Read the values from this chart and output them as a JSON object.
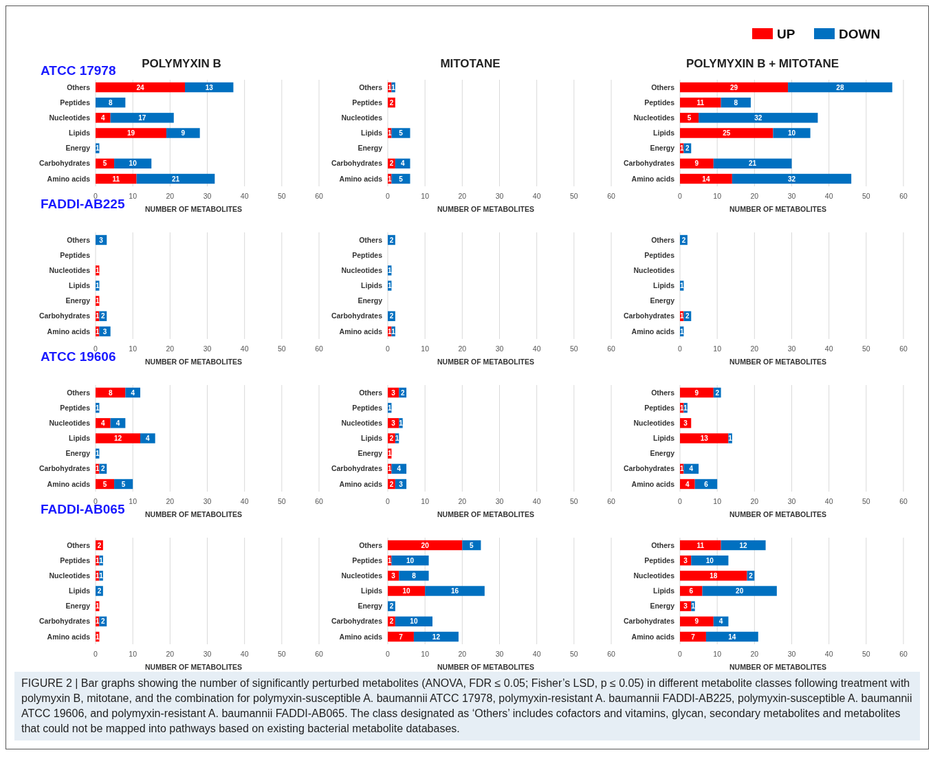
{
  "chart_data": [
    {
      "type": "bar",
      "orientation": "horizontal",
      "stacked": true,
      "title": "POLYMYXIN B",
      "subtitle": "ATCC 17978",
      "xlabel": "NUMBER OF METABOLITES",
      "categories": [
        "Others",
        "Peptides",
        "Nucleotides",
        "Lipids",
        "Energy",
        "Carbohydrates",
        "Amino acids"
      ],
      "xlim": [
        0,
        60
      ],
      "xticks": [
        0,
        10,
        20,
        30,
        40,
        50,
        60
      ],
      "grid": "x",
      "data_labels": true,
      "annotations": [
        "FIGURE 2 | Bar graphs showing the number of significantly perturbed metabolites (ANOVA, FDR ≤ 0.05; Fisher’s LSD, p ≤ 0.05) in different metabolite classes following treatment with polymyxin B, mitotane, and the combination for polymyxin-susceptible A. baumannii ATCC 17978, polymyxin-resistant A. baumannii FADDI-AB225, polymyxin-susceptible A. baumannii ATCC 19606, and polymyxin-resistant A. baumannii FADDI-AB065. The class designated as ‘Others’ includes cofactors and vitamins, glycan, secondary metabolites and metabolites that could not be mapped into pathways based on existing bacterial metabolite databases."
      ],
      "series": [
        {
          "color": "#ff0000",
          "values": [
            24,
            null,
            4,
            19,
            null,
            5,
            11
          ]
        },
        {
          "color": "#0070c0",
          "values": [
            13,
            8,
            17,
            9,
            1,
            10,
            21
          ]
        }
      ]
    },
    {
      "type": "bar",
      "orientation": "horizontal",
      "stacked": true,
      "title": "MITOTANE",
      "xlabel": "NUMBER OF METABOLITES",
      "categories": [
        "Others",
        "Peptides",
        "Nucleotides",
        "Lipids",
        "Energy",
        "Carbohydrates",
        "Amino acids"
      ],
      "xlim": [
        0,
        60
      ],
      "xticks": [
        0,
        10,
        20,
        30,
        40,
        50,
        60
      ],
      "grid": "x",
      "data_labels": true,
      "series": [
        {
          "color": "#ff0000",
          "values": [
            1,
            2,
            null,
            1,
            null,
            2,
            1
          ]
        },
        {
          "color": "#0070c0",
          "values": [
            1,
            null,
            null,
            5,
            null,
            4,
            5
          ]
        }
      ]
    },
    {
      "type": "bar",
      "orientation": "horizontal",
      "stacked": true,
      "title": "POLYMYXIN B + MITOTANE",
      "xlabel": "NUMBER OF METABOLITES",
      "categories": [
        "Others",
        "Peptides",
        "Nucleotides",
        "Lipids",
        "Energy",
        "Carbohydrates",
        "Amino acids"
      ],
      "xlim": [
        0,
        60
      ],
      "xticks": [
        0,
        10,
        20,
        30,
        40,
        50,
        60
      ],
      "grid": "x",
      "data_labels": true,
      "legend": "top right",
      "series": [
        {
          "name": "UP",
          "color": "#ff0000",
          "values": [
            29,
            11,
            5,
            25,
            1,
            9,
            14
          ]
        },
        {
          "name": "DOWN",
          "color": "#0070c0",
          "values": [
            28,
            8,
            32,
            10,
            2,
            21,
            32
          ]
        }
      ]
    },
    {
      "type": "bar",
      "orientation": "horizontal",
      "stacked": true,
      "subtitle": "FADDI-AB225",
      "xlabel": "NUMBER OF METABOLITES",
      "categories": [
        "Others",
        "Peptides",
        "Nucleotides",
        "Lipids",
        "Energy",
        "Carbohydrates",
        "Amino acids"
      ],
      "xlim": [
        0,
        60
      ],
      "xticks": [
        0,
        10,
        20,
        30,
        40,
        50,
        60
      ],
      "grid": "x",
      "data_labels": true,
      "series": [
        {
          "color": "#ff0000",
          "values": [
            null,
            null,
            1,
            null,
            1,
            1,
            1
          ]
        },
        {
          "color": "#0070c0",
          "values": [
            3,
            null,
            null,
            1,
            null,
            2,
            3
          ]
        }
      ]
    },
    {
      "type": "bar",
      "orientation": "horizontal",
      "stacked": true,
      "xlabel": "NUMBER OF METABOLITES",
      "categories": [
        "Others",
        "Peptides",
        "Nucleotides",
        "Lipids",
        "Energy",
        "Carbohydrates",
        "Amino acids"
      ],
      "xlim": [
        0,
        60
      ],
      "xticks": [
        0,
        10,
        20,
        30,
        40,
        50,
        60
      ],
      "grid": "x",
      "data_labels": true,
      "series": [
        {
          "color": "#ff0000",
          "values": [
            null,
            null,
            null,
            null,
            null,
            null,
            1
          ]
        },
        {
          "color": "#0070c0",
          "values": [
            2,
            null,
            1,
            1,
            null,
            2,
            1
          ]
        }
      ]
    },
    {
      "type": "bar",
      "orientation": "horizontal",
      "stacked": true,
      "xlabel": "NUMBER OF METABOLITES",
      "categories": [
        "Others",
        "Peptides",
        "Nucleotides",
        "Lipids",
        "Energy",
        "Carbohydrates",
        "Amino acids"
      ],
      "xlim": [
        0,
        60
      ],
      "xticks": [
        0,
        10,
        20,
        30,
        40,
        50,
        60
      ],
      "grid": "x",
      "data_labels": true,
      "series": [
        {
          "color": "#ff0000",
          "values": [
            null,
            null,
            null,
            null,
            null,
            1,
            null
          ]
        },
        {
          "color": "#0070c0",
          "values": [
            2,
            null,
            null,
            1,
            null,
            2,
            1
          ]
        }
      ]
    },
    {
      "type": "bar",
      "orientation": "horizontal",
      "stacked": true,
      "subtitle": "ATCC 19606",
      "xlabel": "NUMBER OF METABOLITES",
      "categories": [
        "Others",
        "Peptides",
        "Nucleotides",
        "Lipids",
        "Energy",
        "Carbohydrates",
        "Amino acids"
      ],
      "xlim": [
        0,
        60
      ],
      "xticks": [
        0,
        10,
        20,
        30,
        40,
        50,
        60
      ],
      "grid": "x",
      "data_labels": true,
      "series": [
        {
          "color": "#ff0000",
          "values": [
            8,
            null,
            4,
            12,
            null,
            1,
            5
          ]
        },
        {
          "color": "#0070c0",
          "values": [
            4,
            1,
            4,
            4,
            1,
            2,
            5
          ]
        }
      ]
    },
    {
      "type": "bar",
      "orientation": "horizontal",
      "stacked": true,
      "xlabel": "NUMBER OF METABOLITES",
      "categories": [
        "Others",
        "Peptides",
        "Nucleotides",
        "Lipids",
        "Energy",
        "Carbohydrates",
        "Amino acids"
      ],
      "xlim": [
        0,
        60
      ],
      "xticks": [
        0,
        10,
        20,
        30,
        40,
        50,
        60
      ],
      "grid": "x",
      "data_labels": true,
      "series": [
        {
          "color": "#ff0000",
          "values": [
            3,
            null,
            3,
            2,
            1,
            1,
            2
          ]
        },
        {
          "color": "#0070c0",
          "values": [
            2,
            1,
            1,
            1,
            null,
            4,
            3
          ]
        }
      ]
    },
    {
      "type": "bar",
      "orientation": "horizontal",
      "stacked": true,
      "xlabel": "NUMBER OF METABOLITES",
      "categories": [
        "Others",
        "Peptides",
        "Nucleotides",
        "Lipids",
        "Energy",
        "Carbohydrates",
        "Amino acids"
      ],
      "xlim": [
        0,
        60
      ],
      "xticks": [
        0,
        10,
        20,
        30,
        40,
        50,
        60
      ],
      "grid": "x",
      "data_labels": true,
      "series": [
        {
          "color": "#ff0000",
          "values": [
            9,
            1,
            3,
            13,
            null,
            1,
            4
          ]
        },
        {
          "color": "#0070c0",
          "values": [
            2,
            1,
            null,
            1,
            null,
            4,
            6
          ]
        }
      ]
    },
    {
      "type": "bar",
      "orientation": "horizontal",
      "stacked": true,
      "subtitle": "FADDI-AB065",
      "xlabel": "NUMBER OF METABOLITES",
      "categories": [
        "Others",
        "Peptides",
        "Nucleotides",
        "Lipids",
        "Energy",
        "Carbohydrates",
        "Amino acids"
      ],
      "xlim": [
        0,
        60
      ],
      "xticks": [
        0,
        10,
        20,
        30,
        40,
        50,
        60
      ],
      "grid": "x",
      "data_labels": true,
      "series": [
        {
          "color": "#ff0000",
          "values": [
            2,
            1,
            1,
            null,
            1,
            1,
            1
          ]
        },
        {
          "color": "#0070c0",
          "values": [
            null,
            1,
            1,
            2,
            null,
            2,
            null
          ]
        }
      ]
    },
    {
      "type": "bar",
      "orientation": "horizontal",
      "stacked": true,
      "xlabel": "NUMBER OF METABOLITES",
      "categories": [
        "Others",
        "Peptides",
        "Nucleotides",
        "Lipids",
        "Energy",
        "Carbohydrates",
        "Amino acids"
      ],
      "xlim": [
        0,
        60
      ],
      "xticks": [
        0,
        10,
        20,
        30,
        40,
        50,
        60
      ],
      "grid": "x",
      "data_labels": true,
      "series": [
        {
          "color": "#ff0000",
          "values": [
            20,
            1,
            3,
            10,
            null,
            2,
            7
          ]
        },
        {
          "color": "#0070c0",
          "values": [
            5,
            10,
            8,
            16,
            2,
            10,
            12
          ]
        }
      ]
    },
    {
      "type": "bar",
      "orientation": "horizontal",
      "stacked": true,
      "xlabel": "NUMBER OF METABOLITES",
      "categories": [
        "Others",
        "Peptides",
        "Nucleotides",
        "Lipids",
        "Energy",
        "Carbohydrates",
        "Amino acids"
      ],
      "xlim": [
        0,
        60
      ],
      "xticks": [
        0,
        10,
        20,
        30,
        40,
        50,
        60
      ],
      "grid": "x",
      "data_labels": true,
      "series": [
        {
          "color": "#ff0000",
          "values": [
            11,
            3,
            18,
            6,
            3,
            9,
            7
          ]
        },
        {
          "color": "#0070c0",
          "values": [
            12,
            10,
            2,
            20,
            1,
            4,
            14
          ]
        }
      ]
    }
  ]
}
